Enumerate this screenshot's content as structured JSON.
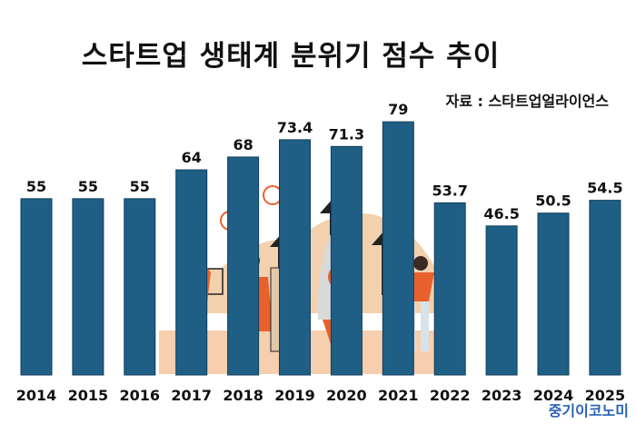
{
  "title": "스타트업 생태계 분위기 점수 추이",
  "source": "자료 : 스타트업얼라이언스",
  "watermark": "중기이코노미",
  "colors": {
    "bar": "#1f5f85",
    "bar_edge": "#0f3e5c",
    "illustration_bg": "#f3d1ae",
    "accent": "#e8612c"
  },
  "chart_data": {
    "type": "bar",
    "categories": [
      "2014",
      "2015",
      "2016",
      "2017",
      "2018",
      "2019",
      "2020",
      "2021",
      "2022",
      "2023",
      "2024",
      "2025"
    ],
    "values": [
      55,
      55,
      55,
      64,
      68,
      73.4,
      71.3,
      79,
      53.7,
      46.5,
      50.5,
      54.5
    ],
    "value_labels": [
      "55",
      "55",
      "55",
      "64",
      "68",
      "73.4",
      "71.3",
      "79",
      "53.7",
      "46.5",
      "50.5",
      "54.5"
    ],
    "title": "스타트업 생태계 분위기 점수 추이",
    "xlabel": "",
    "ylabel": "",
    "ylim": [
      0,
      100
    ],
    "grid": false,
    "legend": "none"
  }
}
